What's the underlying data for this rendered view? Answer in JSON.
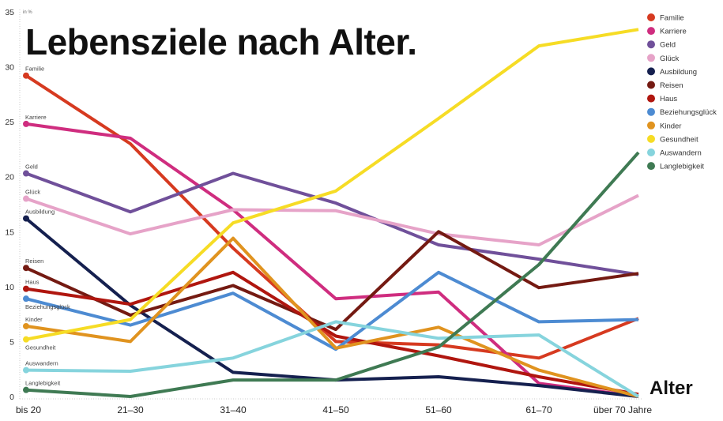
{
  "chart_data": {
    "type": "line",
    "title": "Lebensziele nach Alter.",
    "xlabel": "Alter",
    "ylabel": "in %",
    "ylim": [
      0,
      35
    ],
    "yticks": [
      0,
      5,
      10,
      15,
      20,
      25,
      30,
      35
    ],
    "grid": false,
    "legend_position": "top-right",
    "categories": [
      "bis 20",
      "21–30",
      "31–40",
      "41–50",
      "51–60",
      "61–70",
      "über 70 Jahre"
    ],
    "series": [
      {
        "name": "Familie",
        "color": "#d63a20",
        "values": [
          29.2,
          23.0,
          13.5,
          5.0,
          4.7,
          3.5,
          7.1
        ]
      },
      {
        "name": "Karriere",
        "color": "#cf2d7f",
        "values": [
          24.8,
          23.5,
          17.0,
          8.9,
          9.5,
          1.2,
          0.0
        ]
      },
      {
        "name": "Geld",
        "color": "#70509a",
        "values": [
          20.3,
          16.8,
          20.3,
          17.6,
          13.8,
          12.5,
          11.1
        ]
      },
      {
        "name": "Glück",
        "color": "#e6a3c8",
        "values": [
          18.0,
          14.8,
          17.0,
          16.9,
          14.8,
          13.8,
          18.3
        ]
      },
      {
        "name": "Ausbildung",
        "color": "#15204f",
        "values": [
          16.2,
          8.3,
          2.2,
          1.5,
          1.8,
          1.0,
          0.0
        ]
      },
      {
        "name": "Reisen",
        "color": "#741a12",
        "values": [
          11.7,
          7.4,
          10.1,
          6.1,
          15.0,
          9.9,
          11.2
        ]
      },
      {
        "name": "Haus",
        "color": "#b0160f",
        "values": [
          9.8,
          8.4,
          11.3,
          5.5,
          3.7,
          1.8,
          0.2
        ]
      },
      {
        "name": "Beziehungsglück",
        "color": "#4d8bd2",
        "values": [
          8.9,
          6.5,
          9.4,
          4.3,
          11.3,
          6.8,
          7.0
        ]
      },
      {
        "name": "Kinder",
        "color": "#e0931f",
        "values": [
          6.4,
          5.0,
          14.4,
          4.4,
          6.3,
          2.4,
          0.0
        ]
      },
      {
        "name": "Gesundheit",
        "color": "#f6dc25",
        "values": [
          5.2,
          7.0,
          15.8,
          18.7,
          25.3,
          31.9,
          33.4
        ]
      },
      {
        "name": "Auswandern",
        "color": "#86d4dd",
        "values": [
          2.4,
          2.3,
          3.5,
          6.8,
          5.3,
          5.6,
          0.0
        ]
      },
      {
        "name": "Langlebigkeit",
        "color": "#3f7a53",
        "values": [
          0.6,
          0.0,
          1.5,
          1.5,
          4.5,
          12.0,
          22.2
        ]
      }
    ]
  }
}
